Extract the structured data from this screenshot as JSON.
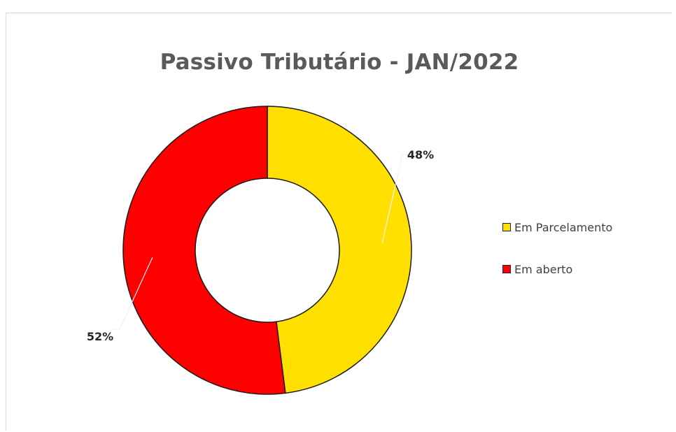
{
  "chart_data": {
    "type": "pie",
    "subtype": "donut",
    "title": "Passivo Tributário - JAN/2022",
    "slices": [
      {
        "name": "Em Parcelamento",
        "value": 48,
        "label": "48%",
        "color": "#ffe000"
      },
      {
        "name": "Em aberto",
        "value": 52,
        "label": "52%",
        "color": "#ff0000"
      }
    ],
    "legend_position": "right",
    "border_color": "#1a1a1a"
  }
}
